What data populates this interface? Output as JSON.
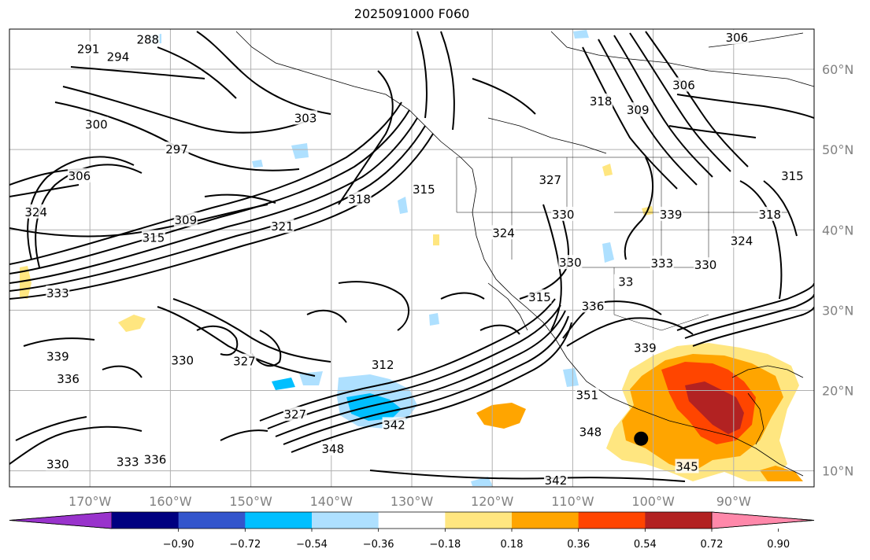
{
  "title": "2025091000 F060",
  "map": {
    "lon_min": -180,
    "lon_max": -80,
    "lat_min": 8,
    "lat_max": 65,
    "grid": true,
    "lon_ticks": [
      {
        "lon": -170,
        "label": "170°W"
      },
      {
        "lon": -160,
        "label": "160°W"
      },
      {
        "lon": -150,
        "label": "150°W"
      },
      {
        "lon": -140,
        "label": "140°W"
      },
      {
        "lon": -130,
        "label": "130°W"
      },
      {
        "lon": -120,
        "label": "120°W"
      },
      {
        "lon": -110,
        "label": "110°W"
      },
      {
        "lon": -100,
        "label": "100°W"
      },
      {
        "lon": -90,
        "label": "90°W"
      }
    ],
    "lat_ticks": [
      {
        "lat": 60,
        "label": "60°N"
      },
      {
        "lat": 50,
        "label": "50°N"
      },
      {
        "lat": 40,
        "label": "40°N"
      },
      {
        "lat": 30,
        "label": "30°N"
      },
      {
        "lat": 20,
        "label": "20°N"
      },
      {
        "lat": 10,
        "label": "10°N"
      }
    ],
    "marker": {
      "lon": -101.5,
      "lat": 14.0,
      "color": "#000000"
    },
    "contour_labels": [
      {
        "text": "288",
        "lon": -162.8,
        "lat": 63.7
      },
      {
        "text": "291",
        "lon": -170.2,
        "lat": 62.5
      },
      {
        "text": "294",
        "lon": -166.5,
        "lat": 61.5
      },
      {
        "text": "303",
        "lon": -143.2,
        "lat": 53.9
      },
      {
        "text": "300",
        "lon": -169.2,
        "lat": 53.1
      },
      {
        "text": "297",
        "lon": -159.2,
        "lat": 50.0
      },
      {
        "text": "306",
        "lon": -171.3,
        "lat": 46.7
      },
      {
        "text": "318",
        "lon": -136.5,
        "lat": 43.8
      },
      {
        "text": "315",
        "lon": -128.5,
        "lat": 45.0
      },
      {
        "text": "327",
        "lon": -112.8,
        "lat": 46.2
      },
      {
        "text": "324",
        "lon": -176.7,
        "lat": 42.2
      },
      {
        "text": "309",
        "lon": -158.1,
        "lat": 41.2
      },
      {
        "text": "321",
        "lon": -146.1,
        "lat": 40.4
      },
      {
        "text": "315",
        "lon": -162.1,
        "lat": 39.0
      },
      {
        "text": "324",
        "lon": -118.6,
        "lat": 39.6
      },
      {
        "text": "330",
        "lon": -111.2,
        "lat": 41.9
      },
      {
        "text": "339",
        "lon": -97.8,
        "lat": 41.9
      },
      {
        "text": "333",
        "lon": -98.9,
        "lat": 35.8
      },
      {
        "text": "330",
        "lon": -93.5,
        "lat": 35.6
      },
      {
        "text": "315",
        "lon": -82.7,
        "lat": 46.7
      },
      {
        "text": "324",
        "lon": -89.0,
        "lat": 38.6
      },
      {
        "text": "318",
        "lon": -85.5,
        "lat": 41.9
      },
      {
        "text": "330",
        "lon": -110.3,
        "lat": 35.9
      },
      {
        "text": "333",
        "lon": -174.0,
        "lat": 32.1
      },
      {
        "text": "315",
        "lon": -114.1,
        "lat": 31.6
      },
      {
        "text": "336",
        "lon": -107.5,
        "lat": 30.5
      },
      {
        "text": "33",
        "lon": -103.4,
        "lat": 33.5
      },
      {
        "text": "339",
        "lon": -101.0,
        "lat": 25.3
      },
      {
        "text": "339",
        "lon": -174.0,
        "lat": 24.2
      },
      {
        "text": "330",
        "lon": -158.5,
        "lat": 23.7
      },
      {
        "text": "327",
        "lon": -150.8,
        "lat": 23.6
      },
      {
        "text": "312",
        "lon": -133.6,
        "lat": 23.2
      },
      {
        "text": "336",
        "lon": -172.7,
        "lat": 21.4
      },
      {
        "text": "351",
        "lon": -108.2,
        "lat": 19.4
      },
      {
        "text": "327",
        "lon": -144.5,
        "lat": 17.0
      },
      {
        "text": "342",
        "lon": -132.2,
        "lat": 15.7
      },
      {
        "text": "348",
        "lon": -139.8,
        "lat": 12.7
      },
      {
        "text": "348",
        "lon": -107.8,
        "lat": 14.8
      },
      {
        "text": "336",
        "lon": -161.9,
        "lat": 11.4
      },
      {
        "text": "333",
        "lon": -165.3,
        "lat": 11.1
      },
      {
        "text": "330",
        "lon": -174.0,
        "lat": 10.8
      },
      {
        "text": "345",
        "lon": -95.8,
        "lat": 10.5
      },
      {
        "text": "342",
        "lon": -112.1,
        "lat": 8.8
      },
      {
        "text": "306",
        "lon": -96.2,
        "lat": 58.0
      },
      {
        "text": "309",
        "lon": -101.9,
        "lat": 54.9
      },
      {
        "text": "318",
        "lon": -106.5,
        "lat": 56.0
      },
      {
        "text": "306",
        "lon": -89.6,
        "lat": 63.9
      }
    ]
  },
  "colorbar": {
    "colors": [
      "#9933cc",
      "#000080",
      "#3355cc",
      "#00bfff",
      "#aee0ff",
      "#ffffff",
      "#ffe680",
      "#ffa500",
      "#ff4500",
      "#b22222",
      "#ff88aa"
    ],
    "tick_labels": [
      "−0.90",
      "−0.72",
      "−0.54",
      "−0.36",
      "−0.18",
      "0.18",
      "0.36",
      "0.54",
      "0.72",
      "0.90"
    ]
  }
}
